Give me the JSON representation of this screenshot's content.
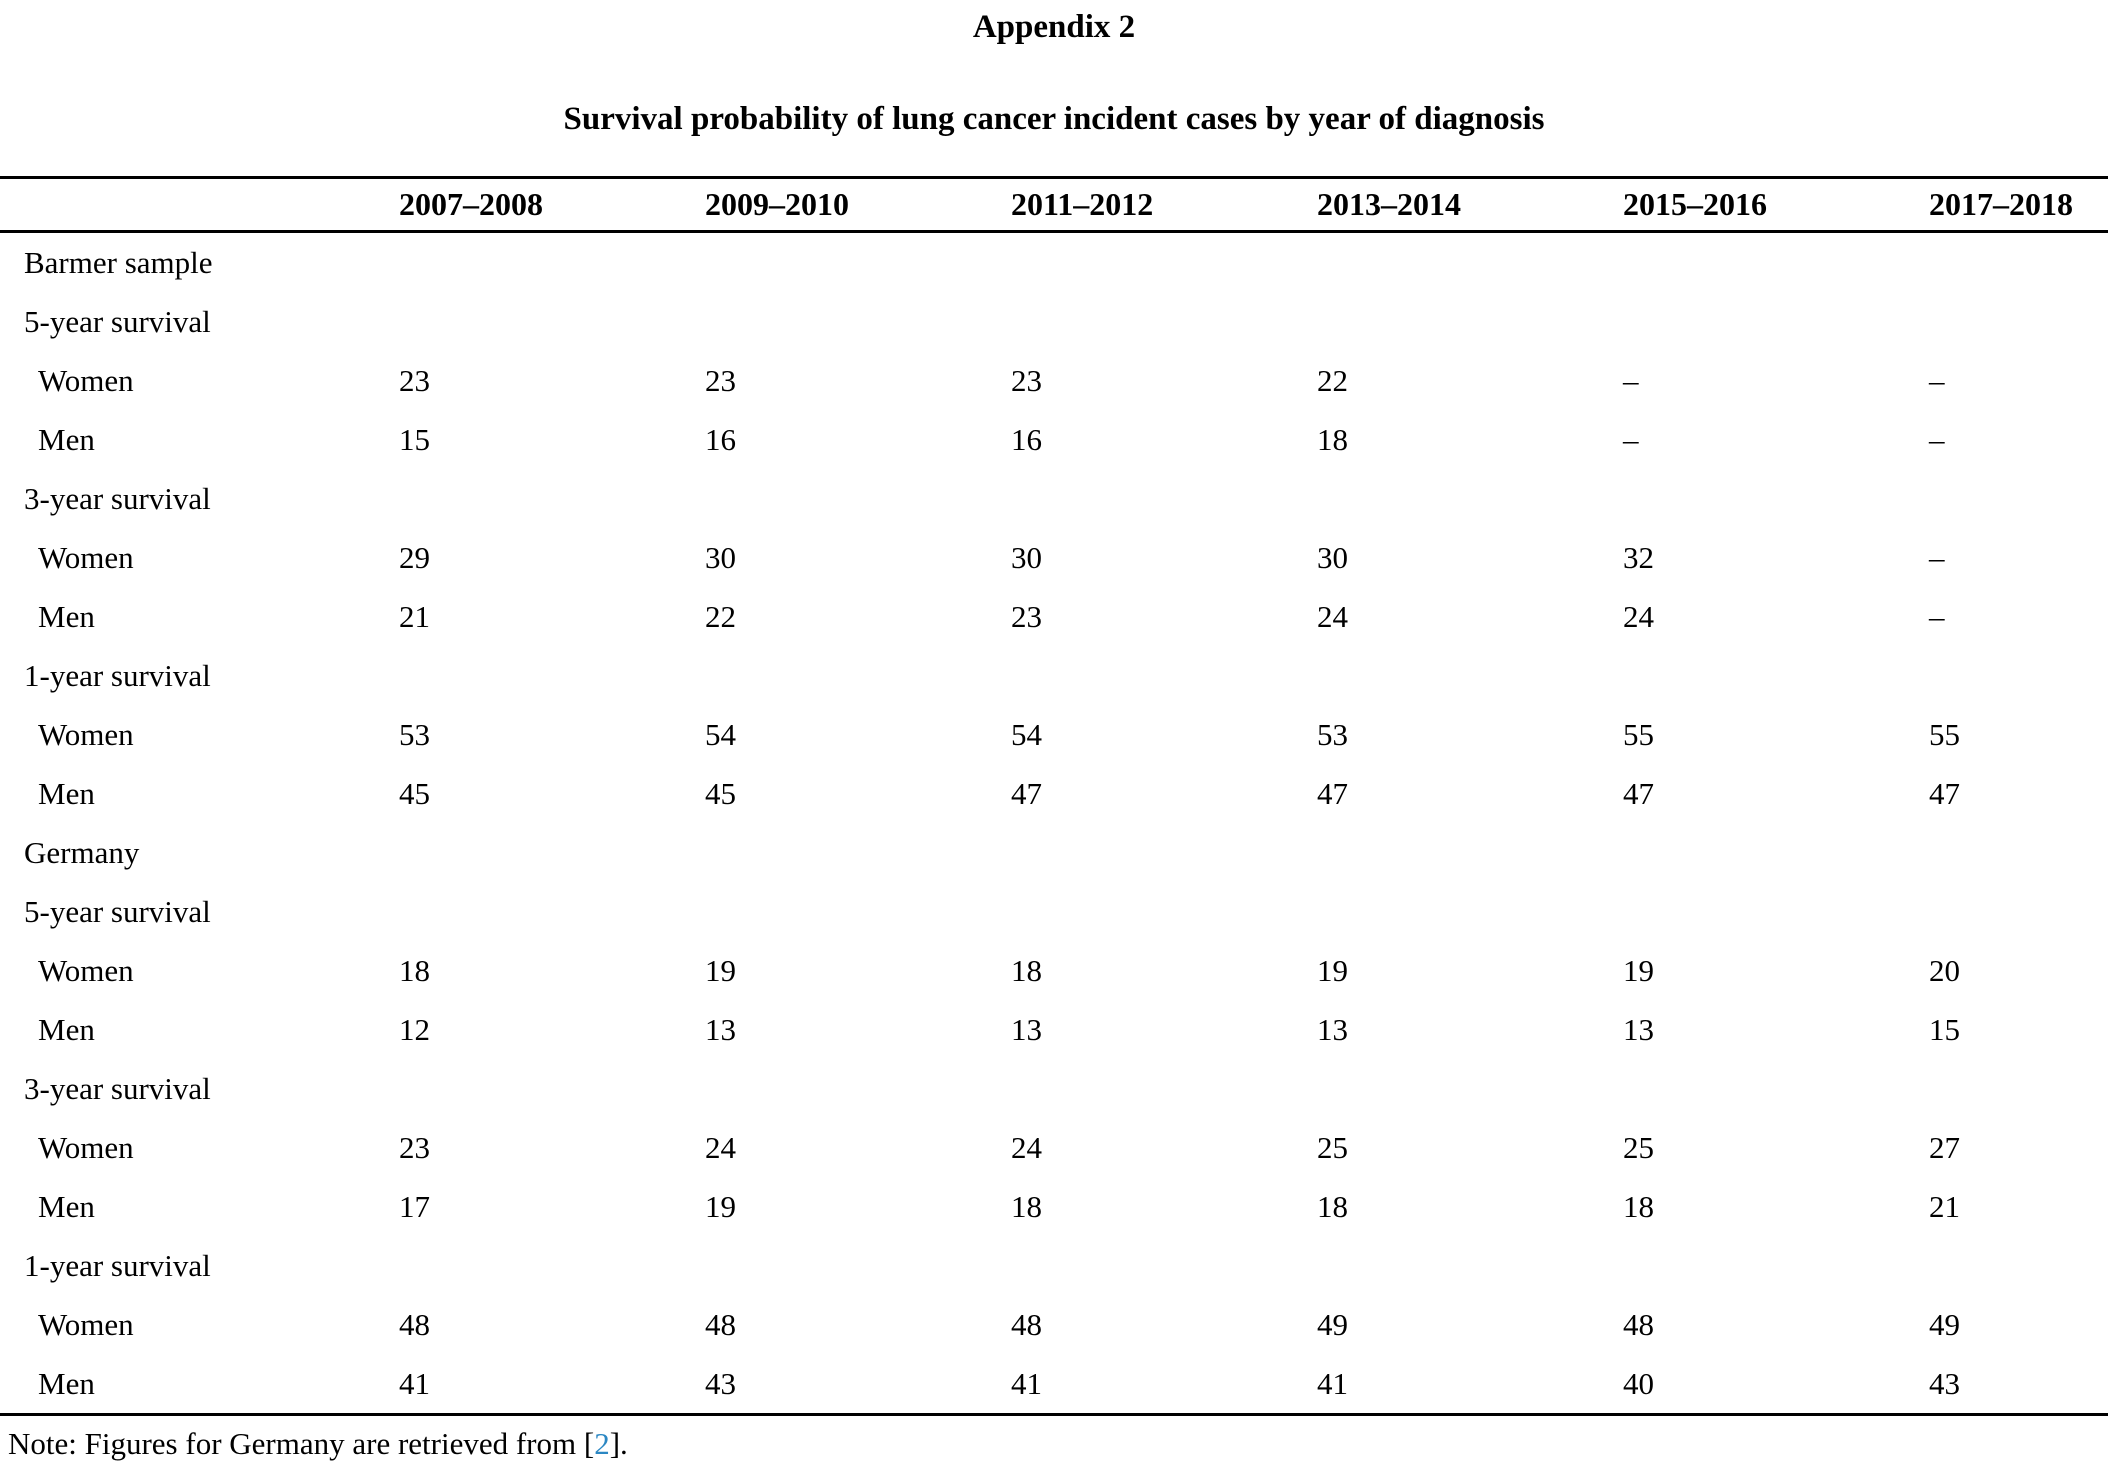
{
  "title": "Appendix 2",
  "subtitle": "Survival probability of lung cancer incident cases by year of diagnosis",
  "table": {
    "columns": [
      "2007–2008",
      "2009–2010",
      "2011–2012",
      "2013–2014",
      "2015–2016",
      "2017–2018"
    ],
    "rows": [
      {
        "label": "Barmer sample",
        "type": "section",
        "values": [
          "",
          "",
          "",
          "",
          "",
          ""
        ]
      },
      {
        "label": "5-year survival",
        "type": "subsection",
        "values": [
          "",
          "",
          "",
          "",
          "",
          ""
        ]
      },
      {
        "label": "Women",
        "type": "data",
        "values": [
          "23",
          "23",
          "23",
          "22",
          "–",
          "–"
        ]
      },
      {
        "label": "Men",
        "type": "data",
        "values": [
          "15",
          "16",
          "16",
          "18",
          "–",
          "–"
        ]
      },
      {
        "label": "3-year survival",
        "type": "subsection",
        "values": [
          "",
          "",
          "",
          "",
          "",
          ""
        ]
      },
      {
        "label": "Women",
        "type": "data",
        "values": [
          "29",
          "30",
          "30",
          "30",
          "32",
          "–"
        ]
      },
      {
        "label": "Men",
        "type": "data",
        "values": [
          "21",
          "22",
          "23",
          "24",
          "24",
          "–"
        ]
      },
      {
        "label": "1-year survival",
        "type": "subsection",
        "values": [
          "",
          "",
          "",
          "",
          "",
          ""
        ]
      },
      {
        "label": "Women",
        "type": "data",
        "values": [
          "53",
          "54",
          "54",
          "53",
          "55",
          "55"
        ]
      },
      {
        "label": "Men",
        "type": "data",
        "values": [
          "45",
          "45",
          "47",
          "47",
          "47",
          "47"
        ]
      },
      {
        "label": "Germany",
        "type": "section",
        "values": [
          "",
          "",
          "",
          "",
          "",
          ""
        ]
      },
      {
        "label": "5-year survival",
        "type": "subsection",
        "values": [
          "",
          "",
          "",
          "",
          "",
          ""
        ]
      },
      {
        "label": "Women",
        "type": "data",
        "values": [
          "18",
          "19",
          "18",
          "19",
          "19",
          "20"
        ]
      },
      {
        "label": "Men",
        "type": "data",
        "values": [
          "12",
          "13",
          "13",
          "13",
          "13",
          "15"
        ]
      },
      {
        "label": "3-year survival",
        "type": "subsection",
        "values": [
          "",
          "",
          "",
          "",
          "",
          ""
        ]
      },
      {
        "label": "Women",
        "type": "data",
        "values": [
          "23",
          "24",
          "24",
          "25",
          "25",
          "27"
        ]
      },
      {
        "label": "Men",
        "type": "data",
        "values": [
          "17",
          "19",
          "18",
          "18",
          "18",
          "21"
        ]
      },
      {
        "label": "1-year survival",
        "type": "subsection",
        "values": [
          "",
          "",
          "",
          "",
          "",
          ""
        ]
      },
      {
        "label": "Women",
        "type": "data",
        "values": [
          "48",
          "48",
          "48",
          "49",
          "48",
          "49"
        ]
      },
      {
        "label": "Men",
        "type": "data",
        "values": [
          "41",
          "43",
          "41",
          "41",
          "40",
          "43"
        ]
      }
    ]
  },
  "note": {
    "prefix": "Note: Figures for Germany are retrieved from [",
    "ref": "2",
    "suffix": "]."
  },
  "colors": {
    "text": "#000000",
    "rule": "#000000",
    "link": "#2b87c3"
  }
}
